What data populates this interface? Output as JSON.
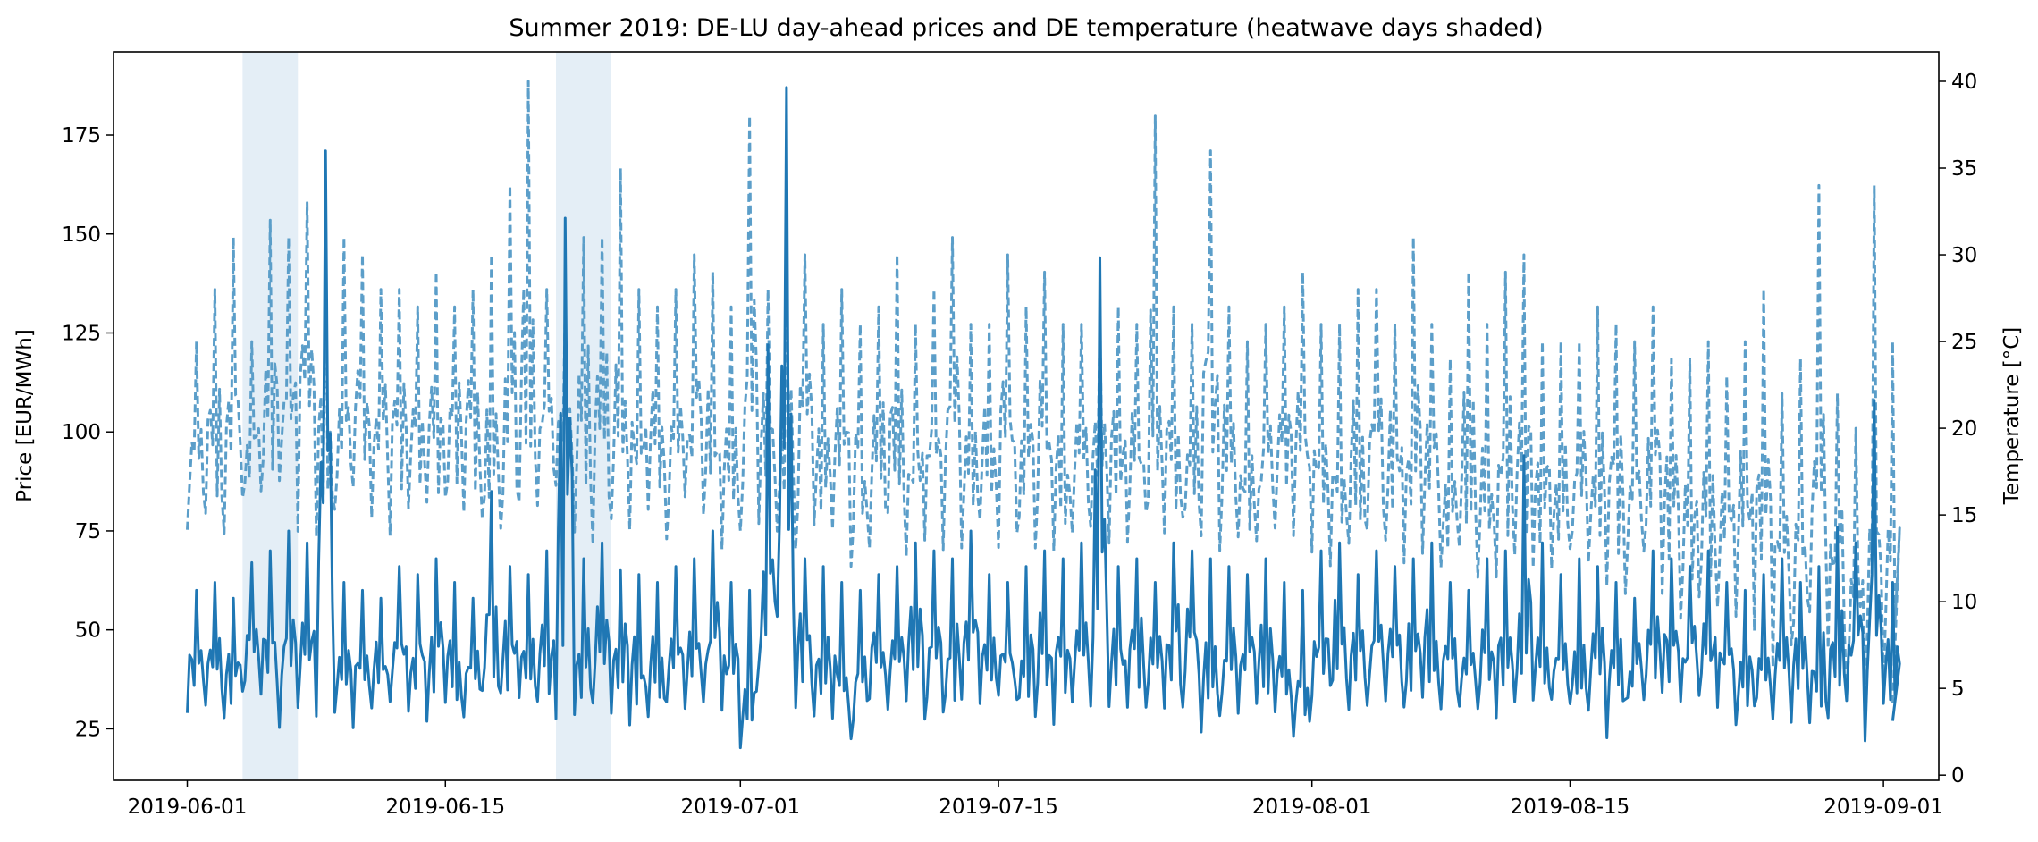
{
  "chart_data": {
    "type": "line",
    "title": "Summer 2019: DE-LU day-ahead prices and DE temperature (heatwave days shaded)",
    "ylabel": "Price [EUR/MWh]",
    "y2label": "Temperature [°C]",
    "xlim": [
      "2019-05-28",
      "2019-09-04"
    ],
    "ylim": [
      12,
      196
    ],
    "y2lim": [
      -0.3,
      41.7
    ],
    "x_ticks": [
      "2019-06-01",
      "2019-06-15",
      "2019-07-01",
      "2019-07-15",
      "2019-08-01",
      "2019-08-15",
      "2019-09-01"
    ],
    "y_ticks": [
      25,
      50,
      75,
      100,
      125,
      150,
      175
    ],
    "y2_ticks": [
      0,
      5,
      10,
      15,
      20,
      25,
      30,
      35,
      40
    ],
    "grid": false,
    "legend": "none",
    "shaded_ranges": [
      {
        "start": "2019-06-04",
        "end": "2019-06-07"
      },
      {
        "start": "2019-06-21",
        "end": "2019-06-24"
      }
    ],
    "series": [
      {
        "axis": "left",
        "style": "solid",
        "color": "#1f77b4",
        "sampling": "daily range (low/high), 2019-06-01 to 2019-09-01",
        "start": "2019-06-01",
        "low": [
          29,
          27,
          26,
          30,
          28,
          23,
          30,
          27,
          27,
          24,
          28,
          30,
          29,
          26,
          27,
          28,
          27,
          29,
          30,
          27,
          25,
          22,
          30,
          27,
          22,
          25,
          28,
          30,
          27,
          26,
          20,
          28,
          30,
          29,
          27,
          25,
          20,
          28,
          27,
          26,
          25,
          24,
          28,
          30,
          29,
          27,
          27,
          26,
          25,
          29,
          27,
          28,
          26,
          29,
          30,
          24,
          28,
          26,
          27,
          27,
          21,
          28,
          31,
          29,
          28,
          27,
          26,
          30,
          27,
          28,
          27,
          24,
          26,
          28,
          30,
          26,
          26,
          22,
          28,
          29,
          31,
          28,
          30,
          27,
          25,
          26,
          27,
          23,
          24,
          26,
          28,
          21,
          27
        ],
        "high": [
          60,
          62,
          58,
          67,
          70,
          75,
          72,
          171,
          62,
          60,
          58,
          66,
          64,
          68,
          62,
          58,
          85,
          66,
          64,
          70,
          154,
          68,
          72,
          65,
          64,
          62,
          66,
          68,
          75,
          62,
          60,
          122,
          187,
          68,
          66,
          62,
          60,
          64,
          66,
          72,
          70,
          68,
          75,
          64,
          62,
          66,
          70,
          68,
          72,
          144,
          66,
          68,
          62,
          72,
          70,
          68,
          66,
          64,
          68,
          62,
          60,
          70,
          72,
          64,
          70,
          66,
          68,
          72,
          62,
          60,
          68,
          70,
          94,
          72,
          64,
          68,
          66,
          62,
          58,
          70,
          68,
          66,
          70,
          62,
          60,
          64,
          68,
          62,
          66,
          76,
          72,
          108,
          62
        ]
      },
      {
        "axis": "right",
        "style": "dashed",
        "color": "#5b9ec9",
        "sampling": "daily range (min/max), 2019-06-01 to 2019-09-01",
        "start": "2019-06-01",
        "min": [
          14,
          13,
          13,
          15,
          15,
          16,
          14,
          13,
          14,
          15,
          14,
          13,
          14,
          14,
          15,
          14,
          13,
          13,
          14,
          15,
          16,
          14,
          13,
          14,
          13,
          14,
          13,
          14,
          13,
          13,
          12,
          13,
          14,
          13,
          13,
          13,
          12,
          13,
          13,
          12,
          13,
          12,
          13,
          14,
          13,
          12,
          13,
          12,
          12,
          13,
          13,
          13,
          12,
          13,
          13,
          13,
          12,
          12,
          12,
          13,
          12,
          12,
          12,
          12,
          12,
          12,
          11,
          12,
          11,
          11,
          10,
          10,
          11,
          11,
          11,
          11,
          10,
          10,
          9,
          11,
          10,
          9,
          9,
          9,
          8,
          8,
          6,
          5,
          6,
          5,
          4,
          3,
          4
        ],
        "max": [
          25,
          28,
          31,
          25,
          32,
          31,
          33,
          31,
          31,
          30,
          28,
          28,
          27,
          29,
          27,
          28,
          30,
          34,
          40,
          28,
          27,
          31,
          31,
          35,
          28,
          27,
          28,
          30,
          29,
          27,
          38,
          28,
          29,
          30,
          26,
          28,
          26,
          27,
          30,
          26,
          28,
          31,
          26,
          26,
          30,
          27,
          29,
          26,
          26,
          26,
          27,
          26,
          38,
          27,
          26,
          36,
          27,
          25,
          26,
          27,
          29,
          26,
          26,
          28,
          28,
          26,
          31,
          26,
          24,
          29,
          26,
          29,
          30,
          25,
          25,
          25,
          27,
          26,
          25,
          27,
          24,
          24,
          25,
          23,
          25,
          28,
          22,
          24,
          34,
          22,
          20,
          34,
          25
        ]
      }
    ]
  }
}
